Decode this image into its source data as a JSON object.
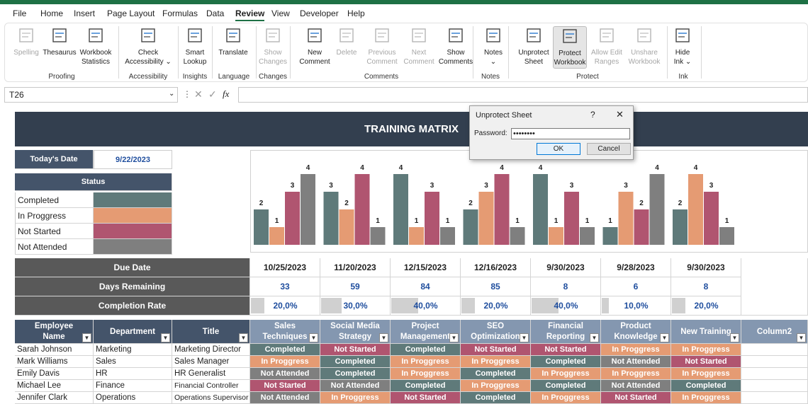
{
  "menu": [
    "File",
    "Home",
    "Insert",
    "Page Layout",
    "Formulas",
    "Data",
    "Review",
    "View",
    "Developer",
    "Help"
  ],
  "ribbon": {
    "buttons": [
      {
        "l1": "Spelling",
        "l2": "",
        "icon": "abc-check-icon"
      },
      {
        "l1": "Thesaurus",
        "l2": "",
        "icon": "book-icon"
      },
      {
        "l1": "Workbook",
        "l2": "Statistics",
        "icon": "statistics-icon"
      },
      {
        "l1": "Check",
        "l2": "Accessibility ⌄",
        "icon": "accessibility-icon"
      },
      {
        "l1": "Smart",
        "l2": "Lookup",
        "icon": "smart-lookup-icon"
      },
      {
        "l1": "Translate",
        "l2": "",
        "icon": "translate-icon"
      },
      {
        "l1": "Show",
        "l2": "Changes",
        "icon": "show-changes-icon"
      },
      {
        "l1": "New",
        "l2": "Comment",
        "icon": "new-comment-icon"
      },
      {
        "l1": "Delete",
        "l2": "",
        "icon": "delete-comment-icon"
      },
      {
        "l1": "Previous",
        "l2": "Comment",
        "icon": "previous-comment-icon"
      },
      {
        "l1": "Next",
        "l2": "Comment",
        "icon": "next-comment-icon"
      },
      {
        "l1": "Show",
        "l2": "Comments",
        "icon": "show-comments-icon"
      },
      {
        "l1": "Notes",
        "l2": "⌄",
        "icon": "notes-icon"
      },
      {
        "l1": "Unprotect",
        "l2": "Sheet",
        "icon": "unprotect-sheet-icon"
      },
      {
        "l1": "Protect",
        "l2": "Workbook",
        "icon": "protect-workbook-icon"
      },
      {
        "l1": "Allow Edit",
        "l2": "Ranges",
        "icon": "allow-edit-ranges-icon"
      },
      {
        "l1": "Unshare",
        "l2": "Workbook",
        "icon": "unshare-workbook-icon"
      },
      {
        "l1": "Hide",
        "l2": "Ink ⌄",
        "icon": "ink-icon"
      }
    ],
    "groups": [
      "Proofing",
      "Accessibility",
      "Insights",
      "Language",
      "Changes",
      "Comments",
      "Notes",
      "Protect",
      "Ink"
    ]
  },
  "namebox": "T26",
  "title": "TRAINING MATRIX",
  "today": {
    "label": "Today's Date",
    "value": "9/22/2023"
  },
  "status": {
    "header": "Status",
    "items": [
      {
        "label": "Completed",
        "color": "#5f7a7a"
      },
      {
        "label": "In Proggress",
        "color": "#e59b73"
      },
      {
        "label": "Not Started",
        "color": "#b05570"
      },
      {
        "label": "Not Attended",
        "color": "#7f7f7f"
      }
    ]
  },
  "chart_data": {
    "type": "bar",
    "categories": [
      "Sales Techniques",
      "Social Media Strategy",
      "Project Management",
      "SEO Optimization",
      "Financial Reporting",
      "Product Knowledge",
      "New Training"
    ],
    "series": [
      {
        "name": "Completed",
        "color": "#5f7a7a",
        "values": [
          2,
          3,
          4,
          2,
          4,
          1,
          2
        ]
      },
      {
        "name": "In Proggress",
        "color": "#e59b73",
        "values": [
          1,
          2,
          1,
          3,
          1,
          3,
          4
        ]
      },
      {
        "name": "Not Started",
        "color": "#b05570",
        "values": [
          3,
          4,
          3,
          4,
          3,
          2,
          3
        ]
      },
      {
        "name": "Not Attended",
        "color": "#7f7f7f",
        "values": [
          4,
          1,
          1,
          1,
          1,
          4,
          1
        ]
      }
    ],
    "ylim": [
      0,
      4
    ]
  },
  "summary": {
    "labels": [
      "Due Date",
      "Days Remaining",
      "Completion Rate"
    ],
    "due": [
      "10/25/2023",
      "11/20/2023",
      "12/15/2023",
      "12/16/2023",
      "9/30/2023",
      "9/28/2023",
      "9/30/2023"
    ],
    "days": [
      "33",
      "59",
      "84",
      "85",
      "8",
      "6",
      "8"
    ],
    "rate": [
      "20,0%",
      "30,0%",
      "40,0%",
      "20,0%",
      "40,0%",
      "10,0%",
      "20,0%"
    ],
    "rate_values": [
      0.2,
      0.3,
      0.4,
      0.2,
      0.4,
      0.1,
      0.2
    ]
  },
  "table": {
    "headers": [
      [
        "Employee",
        "Name"
      ],
      [
        "Department",
        ""
      ],
      [
        "Title",
        ""
      ],
      [
        "Sales",
        "Techniques"
      ],
      [
        "Social Media",
        "Strategy"
      ],
      [
        "Project",
        "Management"
      ],
      [
        "SEO",
        "Optimization"
      ],
      [
        "Financial",
        "Reporting"
      ],
      [
        "Product",
        "Knowledge"
      ],
      [
        "New Training",
        ""
      ],
      [
        "Column2",
        ""
      ]
    ],
    "rows": [
      [
        "Sarah Johnson",
        "Marketing",
        "Marketing Director",
        "Completed",
        "Not Started",
        "Completed",
        "Not Started",
        "Not Started",
        "In Proggress",
        "In Proggress"
      ],
      [
        "Mark Williams",
        "Sales",
        "Sales Manager",
        "In Proggress",
        "Completed",
        "In Proggress",
        "In Proggress",
        "Completed",
        "Not Attended",
        "Not Started"
      ],
      [
        "Emily Davis",
        "HR",
        "HR Generalist",
        "Not Attended",
        "Completed",
        "In Proggress",
        "Completed",
        "In Proggress",
        "In Proggress",
        "In Proggress"
      ],
      [
        "Michael Lee",
        "Finance",
        "Financial Controller",
        "Not Started",
        "Not Attended",
        "Completed",
        "In Proggress",
        "Completed",
        "Not Attended",
        "Completed"
      ],
      [
        "Jennifer Clark",
        "Operations",
        "Operations Supervisor",
        "Not Attended",
        "In Proggress",
        "Not Started",
        "Completed",
        "In Proggress",
        "Not Started",
        "In Proggress"
      ]
    ]
  },
  "dialog": {
    "title": "Unprotect Sheet",
    "help": "?",
    "close": "✕",
    "password_label": "Password:",
    "password_value": "••••••••",
    "ok": "OK",
    "cancel": "Cancel"
  }
}
